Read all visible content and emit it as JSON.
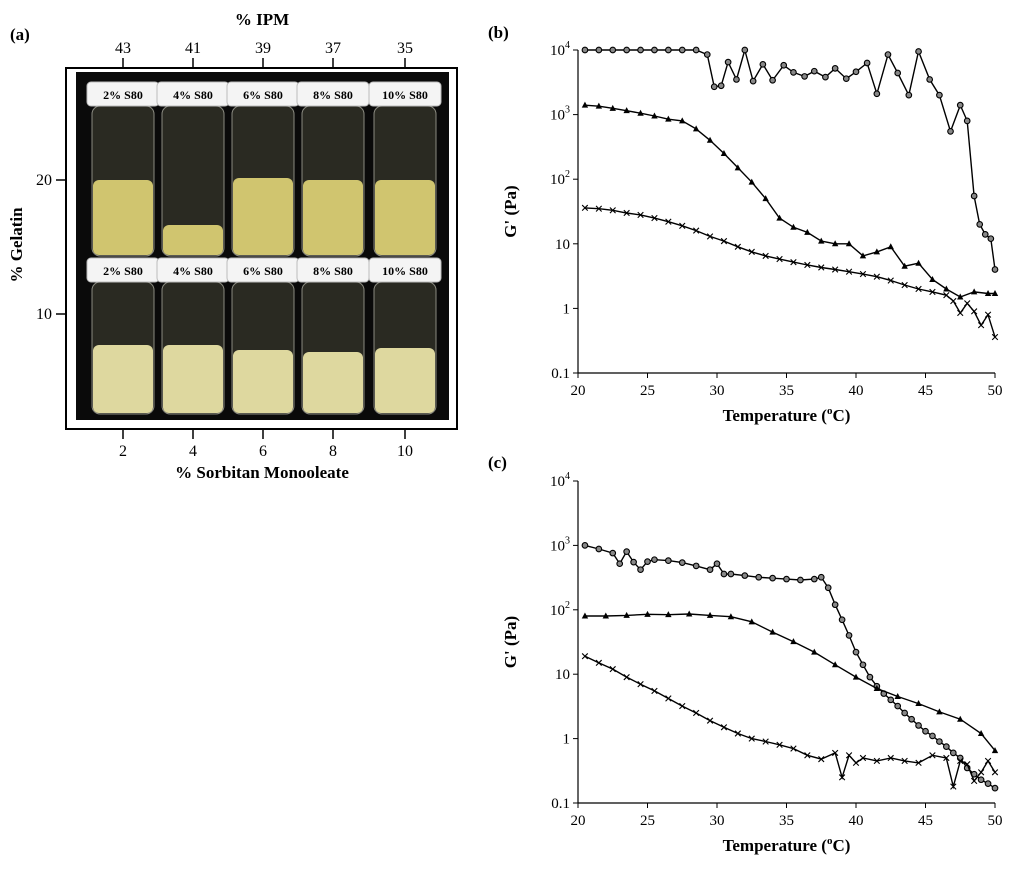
{
  "panel_a": {
    "label": "(a)",
    "top_axis_title": "% IPM",
    "top_ticks": [
      "43",
      "41",
      "39",
      "37",
      "35"
    ],
    "bottom_axis_title": "% Sorbitan Monooleate",
    "bottom_ticks": [
      "2",
      "4",
      "6",
      "8",
      "10"
    ],
    "left_axis_title": "% Gelatin",
    "left_ticks": [
      "20",
      "10"
    ],
    "vial_caps": {
      "top_row": [
        "2% S80",
        "4% S80",
        "6% S80",
        "8% S80",
        "10% S80"
      ],
      "bottom_row": [
        "2% S80",
        "4% S80",
        "6% S80",
        "8% S80",
        "10% S80"
      ]
    }
  },
  "colors": {
    "photo_bg": "#0a0a0a",
    "cap": "#f4f4f4",
    "fluid_top": "#d9cd74",
    "fluid_bottom": "#e8e2a6",
    "line": "#000000"
  },
  "chart_data": [
    {
      "panel": "(b)",
      "type": "line",
      "xlabel": "Temperature (oC)",
      "ylabel": "G' (Pa)",
      "xlim": [
        20,
        50
      ],
      "ylim": [
        0.1,
        10000
      ],
      "yscale": "log",
      "x_ticks": [
        "20",
        "25",
        "30",
        "35",
        "40",
        "45",
        "50"
      ],
      "y_ticks": [
        "0.1",
        "1",
        "10",
        "10^2",
        "10^3",
        "10^4"
      ],
      "series": [
        {
          "name": "circles",
          "marker": "circle",
          "x": [
            20.5,
            21.5,
            22.5,
            23.5,
            24.5,
            25.5,
            26.5,
            27.5,
            28.5,
            29.3,
            29.8,
            30.3,
            30.8,
            31.4,
            32.0,
            32.6,
            33.3,
            34.0,
            34.8,
            35.5,
            36.3,
            37.0,
            37.8,
            38.5,
            39.3,
            40.0,
            40.8,
            41.5,
            42.3,
            43.0,
            43.8,
            44.5,
            45.3,
            46.0,
            46.8,
            47.5,
            48.0,
            48.5,
            48.9,
            49.3,
            49.7,
            50.0
          ],
          "y": [
            10000,
            10000,
            10000,
            10000,
            10000,
            10000,
            10000,
            10000,
            10000,
            8500,
            2700,
            2800,
            6500,
            3500,
            10000,
            3300,
            6000,
            3400,
            5800,
            4500,
            3900,
            4700,
            3800,
            5200,
            3600,
            4600,
            6300,
            2100,
            8500,
            4400,
            2000,
            9500,
            3500,
            2000,
            550,
            1400,
            800,
            55,
            20,
            14,
            12,
            4
          ]
        },
        {
          "name": "triangles",
          "marker": "triangle",
          "x": [
            20.5,
            21.5,
            22.5,
            23.5,
            24.5,
            25.5,
            26.5,
            27.5,
            28.5,
            29.5,
            30.5,
            31.5,
            32.5,
            33.5,
            34.5,
            35.5,
            36.5,
            37.5,
            38.5,
            39.5,
            40.5,
            41.5,
            42.5,
            43.5,
            44.5,
            45.5,
            46.5,
            47.5,
            48.5,
            49.5,
            50.0
          ],
          "y": [
            1400,
            1350,
            1250,
            1150,
            1050,
            950,
            850,
            800,
            600,
            400,
            250,
            150,
            90,
            50,
            25,
            18,
            15,
            11,
            10,
            10,
            6.5,
            7.5,
            9,
            4.5,
            5,
            2.8,
            2,
            1.5,
            1.8,
            1.7,
            1.7
          ]
        },
        {
          "name": "crosses",
          "marker": "x",
          "x": [
            20.5,
            21.5,
            22.5,
            23.5,
            24.5,
            25.5,
            26.5,
            27.5,
            28.5,
            29.5,
            30.5,
            31.5,
            32.5,
            33.5,
            34.5,
            35.5,
            36.5,
            37.5,
            38.5,
            39.5,
            40.5,
            41.5,
            42.5,
            43.5,
            44.5,
            45.5,
            46.5,
            47.0,
            47.5,
            48.0,
            48.5,
            49.0,
            49.5,
            50.0
          ],
          "y": [
            36,
            35,
            33,
            30,
            28,
            25,
            22,
            19,
            16,
            13,
            11,
            9,
            7.5,
            6.5,
            5.8,
            5.2,
            4.7,
            4.3,
            4.0,
            3.7,
            3.4,
            3.1,
            2.7,
            2.3,
            2.0,
            1.8,
            1.6,
            1.3,
            0.85,
            1.2,
            0.9,
            0.55,
            0.8,
            0.36
          ]
        }
      ]
    },
    {
      "panel": "(c)",
      "type": "line",
      "xlabel": "Temperature (oC)",
      "ylabel": "G' (Pa)",
      "xlim": [
        20,
        50
      ],
      "ylim": [
        0.1,
        10000
      ],
      "yscale": "log",
      "x_ticks": [
        "20",
        "25",
        "30",
        "35",
        "40",
        "45",
        "50"
      ],
      "y_ticks": [
        "0.1",
        "1",
        "10",
        "10^2",
        "10^3",
        "10^4"
      ],
      "series": [
        {
          "name": "circles",
          "marker": "circle",
          "x": [
            20.5,
            21.5,
            22.5,
            23.0,
            23.5,
            24.0,
            24.5,
            25.0,
            25.5,
            26.5,
            27.5,
            28.5,
            29.5,
            30.0,
            30.5,
            31.0,
            32.0,
            33.0,
            34.0,
            35.0,
            36.0,
            37.0,
            37.5,
            38.0,
            38.5,
            39.0,
            39.5,
            40.0,
            40.5,
            41.0,
            41.5,
            42.0,
            42.5,
            43.0,
            43.5,
            44.0,
            44.5,
            45.0,
            45.5,
            46.0,
            46.5,
            47.0,
            47.5,
            48.0,
            48.5,
            49.0,
            49.5,
            50.0
          ],
          "y": [
            1000,
            880,
            760,
            520,
            800,
            550,
            420,
            560,
            600,
            580,
            540,
            480,
            420,
            520,
            360,
            360,
            340,
            320,
            310,
            300,
            290,
            300,
            320,
            220,
            120,
            70,
            40,
            22,
            14,
            9,
            6.5,
            5,
            4,
            3.2,
            2.5,
            2.0,
            1.6,
            1.3,
            1.1,
            0.9,
            0.75,
            0.6,
            0.5,
            0.35,
            0.28,
            0.23,
            0.2,
            0.17
          ]
        },
        {
          "name": "triangles",
          "marker": "triangle",
          "x": [
            20.5,
            22.0,
            23.5,
            25.0,
            26.5,
            28.0,
            29.5,
            31.0,
            32.5,
            34.0,
            35.5,
            37.0,
            38.5,
            40.0,
            41.5,
            43.0,
            44.5,
            46.0,
            47.5,
            49.0,
            50.0
          ],
          "y": [
            80,
            80,
            82,
            85,
            84,
            86,
            82,
            78,
            65,
            45,
            32,
            22,
            14,
            9,
            6,
            4.5,
            3.5,
            2.6,
            2.0,
            1.2,
            0.65
          ]
        },
        {
          "name": "crosses",
          "marker": "x",
          "x": [
            20.5,
            21.5,
            22.5,
            23.5,
            24.5,
            25.5,
            26.5,
            27.5,
            28.5,
            29.5,
            30.5,
            31.5,
            32.5,
            33.5,
            34.5,
            35.5,
            36.5,
            37.5,
            38.5,
            39.0,
            39.5,
            40.0,
            40.5,
            41.5,
            42.5,
            43.5,
            44.5,
            45.5,
            46.5,
            47.0,
            47.5,
            48.0,
            48.5,
            49.0,
            49.5,
            50.0
          ],
          "y": [
            19,
            15,
            12,
            9,
            7,
            5.5,
            4.2,
            3.2,
            2.5,
            1.9,
            1.5,
            1.2,
            1.0,
            0.9,
            0.8,
            0.7,
            0.55,
            0.48,
            0.6,
            0.25,
            0.55,
            0.42,
            0.5,
            0.45,
            0.5,
            0.45,
            0.42,
            0.55,
            0.5,
            0.18,
            0.45,
            0.4,
            0.22,
            0.3,
            0.45,
            0.3
          ]
        }
      ]
    }
  ]
}
